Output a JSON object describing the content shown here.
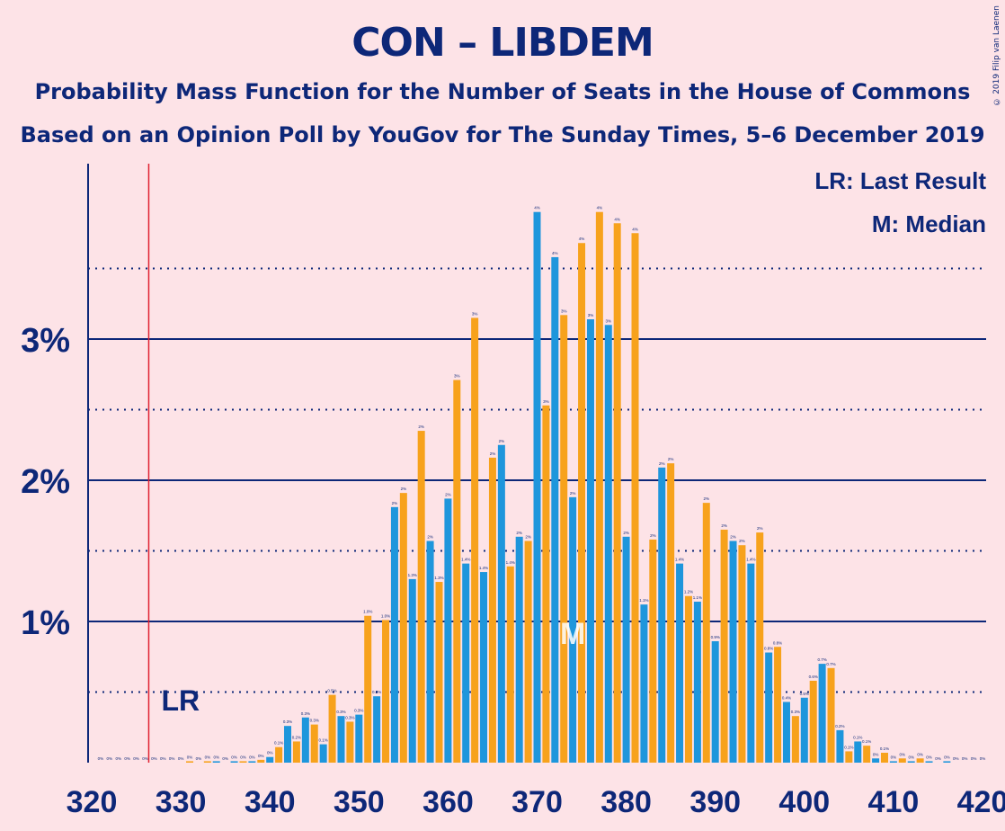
{
  "title": "CON – LIBDEM",
  "subtitle1": "Probability Mass Function for the Number of Seats in the House of Commons",
  "subtitle2": "Based on an Opinion Poll by YouGov for The Sunday Times, 5–6 December 2019",
  "copyright": "© 2019 Filip van Laenen",
  "legend": {
    "lr": "LR: Last Result",
    "m": "M: Median"
  },
  "colors": {
    "background": "#fde3e7",
    "blue": "#1e96dc",
    "orange": "#f7a21c",
    "navy": "#0d2778",
    "red": "#e02030"
  },
  "chart_data": {
    "type": "bar",
    "xlim": [
      320,
      420
    ],
    "ylim": [
      0,
      4.2
    ],
    "xticks": [
      "320",
      "330",
      "340",
      "350",
      "360",
      "370",
      "380",
      "390",
      "400",
      "410",
      "420"
    ],
    "yticks": [
      {
        "value": 1,
        "label": "1%"
      },
      {
        "value": 2,
        "label": "2%"
      },
      {
        "value": 3,
        "label": "3%"
      }
    ],
    "dotted_lines": [
      0.5,
      1.5,
      2.5,
      3.5
    ],
    "last_result": {
      "seats": 326,
      "label": "LR"
    },
    "median": {
      "seats": 374,
      "label": "M"
    },
    "series": [
      {
        "seats": [
          321,
          322,
          323,
          324,
          325,
          326,
          327,
          328,
          329,
          330,
          331,
          332,
          333,
          334,
          335,
          336,
          337,
          338,
          339,
          340,
          341,
          342,
          343,
          344,
          345,
          346,
          347,
          348,
          349,
          350,
          351,
          352,
          353,
          354,
          355,
          356,
          357,
          358,
          359,
          360,
          361,
          362,
          363,
          364,
          365,
          366,
          367,
          368,
          369,
          370,
          371,
          372,
          373,
          374,
          375,
          376,
          377,
          378,
          379,
          380,
          381,
          382,
          383,
          384,
          385,
          386,
          387,
          388,
          389,
          390,
          391,
          392,
          393,
          394,
          395,
          396,
          397,
          398,
          399,
          400,
          401,
          402,
          403,
          404,
          405,
          406,
          407,
          408,
          409,
          410,
          411,
          412,
          413,
          414,
          415,
          416,
          417,
          418,
          419,
          420
        ],
        "values": [
          0,
          0,
          0,
          0,
          0,
          0,
          0,
          0,
          0,
          0,
          0.01,
          0,
          0.01,
          0.01,
          0,
          0.01,
          0.01,
          0.01,
          0.02,
          0.04,
          0.11,
          0.26,
          0.15,
          0.32,
          0.27,
          0.13,
          0.48,
          0.33,
          0.29,
          0.34,
          1.04,
          0.47,
          1.01,
          1.81,
          1.91,
          1.3,
          2.35,
          1.57,
          1.28,
          1.87,
          2.71,
          1.41,
          3.15,
          1.35,
          2.16,
          2.25,
          1.39,
          1.6,
          1.57,
          3.9,
          2.53,
          3.58,
          3.17,
          1.88,
          3.68,
          3.14,
          3.9,
          3.1,
          3.82,
          1.6,
          3.75,
          1.12,
          1.58,
          2.09,
          2.12,
          1.41,
          1.18,
          1.14,
          1.84,
          0.86,
          1.65,
          1.57,
          1.54,
          1.41,
          1.63,
          0.78,
          0.82,
          0.43,
          0.33,
          0.46,
          0.58,
          0.7,
          0.67,
          0.23,
          0.08,
          0.15,
          0.12,
          0.03,
          0.07,
          0.01,
          0.03,
          0.01,
          0.03,
          0.01,
          0,
          0.01,
          0,
          0,
          0,
          0
        ]
      }
    ],
    "bar_labels": [
      "0%",
      "0%",
      "0%",
      "0%",
      "0%",
      "0%",
      "0%",
      "0%",
      "0%",
      "0%",
      "0%",
      "0%",
      "0%",
      "0%",
      "0%",
      "0%",
      "0%",
      "0%",
      "0%",
      "0%",
      "0.1%",
      "0.3%",
      "0.2%",
      "0.3%",
      "0.3%",
      "0.1%",
      "0.5%",
      "0.3%",
      "0.3%",
      "0.3%",
      "1.0%",
      "0.5%",
      "1.0%",
      "2%",
      "2%",
      "1.3%",
      "2%",
      "2%",
      "1.3%",
      "2%",
      "3%",
      "1.4%",
      "3%",
      "1.4%",
      "2%",
      "2%",
      "1.4%",
      "2%",
      "2%",
      "4%",
      "3%",
      "4%",
      "3%",
      "2%",
      "4%",
      "3%",
      "4%",
      "3%",
      "4%",
      "2%",
      "4%",
      "1.1%",
      "2%",
      "2%",
      "2%",
      "1.4%",
      "1.2%",
      "1.1%",
      "2%",
      "0.9%",
      "2%",
      "2%",
      "2%",
      "1.4%",
      "2%",
      "0.8%",
      "0.8%",
      "0.4%",
      "0.3%",
      "0.5%",
      "0.6%",
      "0.7%",
      "0.7%",
      "0.2%",
      "0.1%",
      "0.1%",
      "0.1%",
      "0%",
      "0.1%",
      "0%",
      "0%",
      "0%",
      "0%",
      "0%",
      "0%",
      "0%",
      "0%",
      "0%",
      "0%",
      "0%"
    ]
  }
}
